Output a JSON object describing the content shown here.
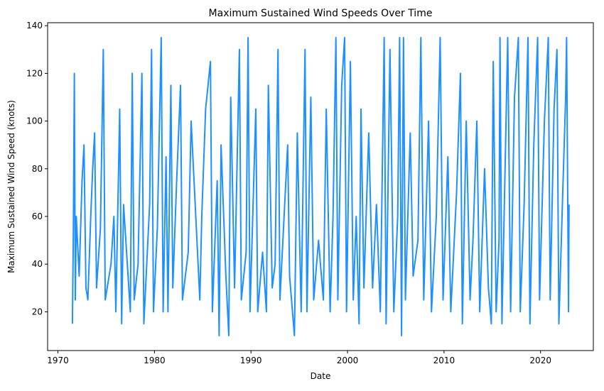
{
  "chart_data": {
    "type": "line",
    "title": "Maximum Sustained Wind Speeds Over Time",
    "x_label": "Date",
    "y_label": "Maximum Sustained Wind Speed (knots)",
    "x": [
      1971.5,
      1971.6,
      1971.7,
      1971.8,
      1971.9,
      1972.2,
      1972.5,
      1972.7,
      1972.9,
      1973.1,
      1973.4,
      1973.6,
      1973.8,
      1974.0,
      1974.4,
      1974.7,
      1974.9,
      1975.5,
      1975.8,
      1976.0,
      1976.4,
      1976.6,
      1976.8,
      1977.5,
      1977.7,
      1977.9,
      1978.3,
      1978.7,
      1978.9,
      1979.5,
      1979.7,
      1979.9,
      1980.3,
      1980.7,
      1980.9,
      1981.2,
      1981.4,
      1981.7,
      1981.9,
      1982.3,
      1982.7,
      1982.9,
      1983.5,
      1983.8,
      1984.7,
      1984.9,
      1985.3,
      1985.8,
      1986.0,
      1986.5,
      1986.7,
      1986.9,
      1987.4,
      1987.7,
      1987.9,
      1988.3,
      1988.8,
      1989.0,
      1989.5,
      1989.7,
      1989.9,
      1990.5,
      1990.7,
      1991.2,
      1991.6,
      1991.8,
      1992.2,
      1992.5,
      1992.8,
      1993.0,
      1993.8,
      1994.0,
      1994.5,
      1994.8,
      1995.2,
      1995.6,
      1995.8,
      1996.2,
      1996.5,
      1997.0,
      1997.5,
      1997.8,
      1998.2,
      1998.5,
      1998.8,
      1999.0,
      1999.4,
      1999.7,
      1999.9,
      2000.3,
      2000.6,
      2000.9,
      2001.2,
      2001.4,
      2001.7,
      2002.2,
      2002.6,
      2003.0,
      2003.4,
      2003.8,
      2004.0,
      2004.4,
      2004.8,
      2005.2,
      2005.4,
      2005.6,
      2005.8,
      2006.0,
      2006.5,
      2006.8,
      2007.3,
      2007.6,
      2007.9,
      2008.4,
      2008.7,
      2009.2,
      2009.6,
      2009.9,
      2010.4,
      2010.7,
      2011.3,
      2011.7,
      2011.9,
      2012.3,
      2012.7,
      2013.0,
      2013.4,
      2013.7,
      2014.2,
      2014.6,
      2014.9,
      2015.1,
      2015.4,
      2015.7,
      2015.8,
      2016.0,
      2016.3,
      2016.6,
      2016.9,
      2017.3,
      2017.7,
      2017.9,
      2018.3,
      2018.7,
      2018.9,
      2019.3,
      2019.7,
      2019.9,
      2020.4,
      2020.8,
      2021.0,
      2021.4,
      2021.7,
      2021.9,
      2022.3,
      2022.6,
      2022.7,
      2022.9,
      2022.95
    ],
    "series": [
      {
        "color": "#1e90ff",
        "values": [
          15,
          55,
          120,
          25,
          60,
          35,
          75,
          90,
          30,
          25,
          60,
          80,
          95,
          30,
          55,
          130,
          25,
          40,
          60,
          20,
          105,
          15,
          65,
          20,
          120,
          25,
          40,
          120,
          15,
          65,
          130,
          20,
          55,
          135,
          20,
          85,
          20,
          115,
          30,
          75,
          115,
          25,
          45,
          100,
          25,
          60,
          105,
          125,
          20,
          75,
          10,
          90,
          35,
          10,
          110,
          30,
          130,
          25,
          45,
          135,
          20,
          105,
          20,
          45,
          20,
          115,
          30,
          40,
          130,
          25,
          90,
          35,
          10,
          95,
          20,
          130,
          20,
          110,
          25,
          50,
          25,
          105,
          20,
          60,
          135,
          25,
          115,
          135,
          20,
          125,
          25,
          60,
          15,
          105,
          30,
          95,
          30,
          65,
          20,
          135,
          15,
          130,
          20,
          60,
          135,
          10,
          135,
          25,
          95,
          35,
          50,
          135,
          25,
          100,
          20,
          60,
          135,
          25,
          85,
          20,
          70,
          120,
          15,
          100,
          25,
          50,
          100,
          20,
          80,
          30,
          15,
          125,
          20,
          50,
          135,
          15,
          75,
          135,
          20,
          110,
          135,
          20,
          65,
          135,
          15,
          90,
          135,
          25,
          100,
          135,
          25,
          105,
          130,
          15,
          70,
          110,
          135,
          20,
          65
        ]
      }
    ],
    "xlim": [
      1968.93,
      2025.47
    ],
    "ylim": [
      3.75,
      141.25
    ],
    "xticks": [
      1970,
      1980,
      1990,
      2000,
      2010,
      2020
    ],
    "yticks": [
      20,
      40,
      60,
      80,
      100,
      120,
      140
    ]
  }
}
